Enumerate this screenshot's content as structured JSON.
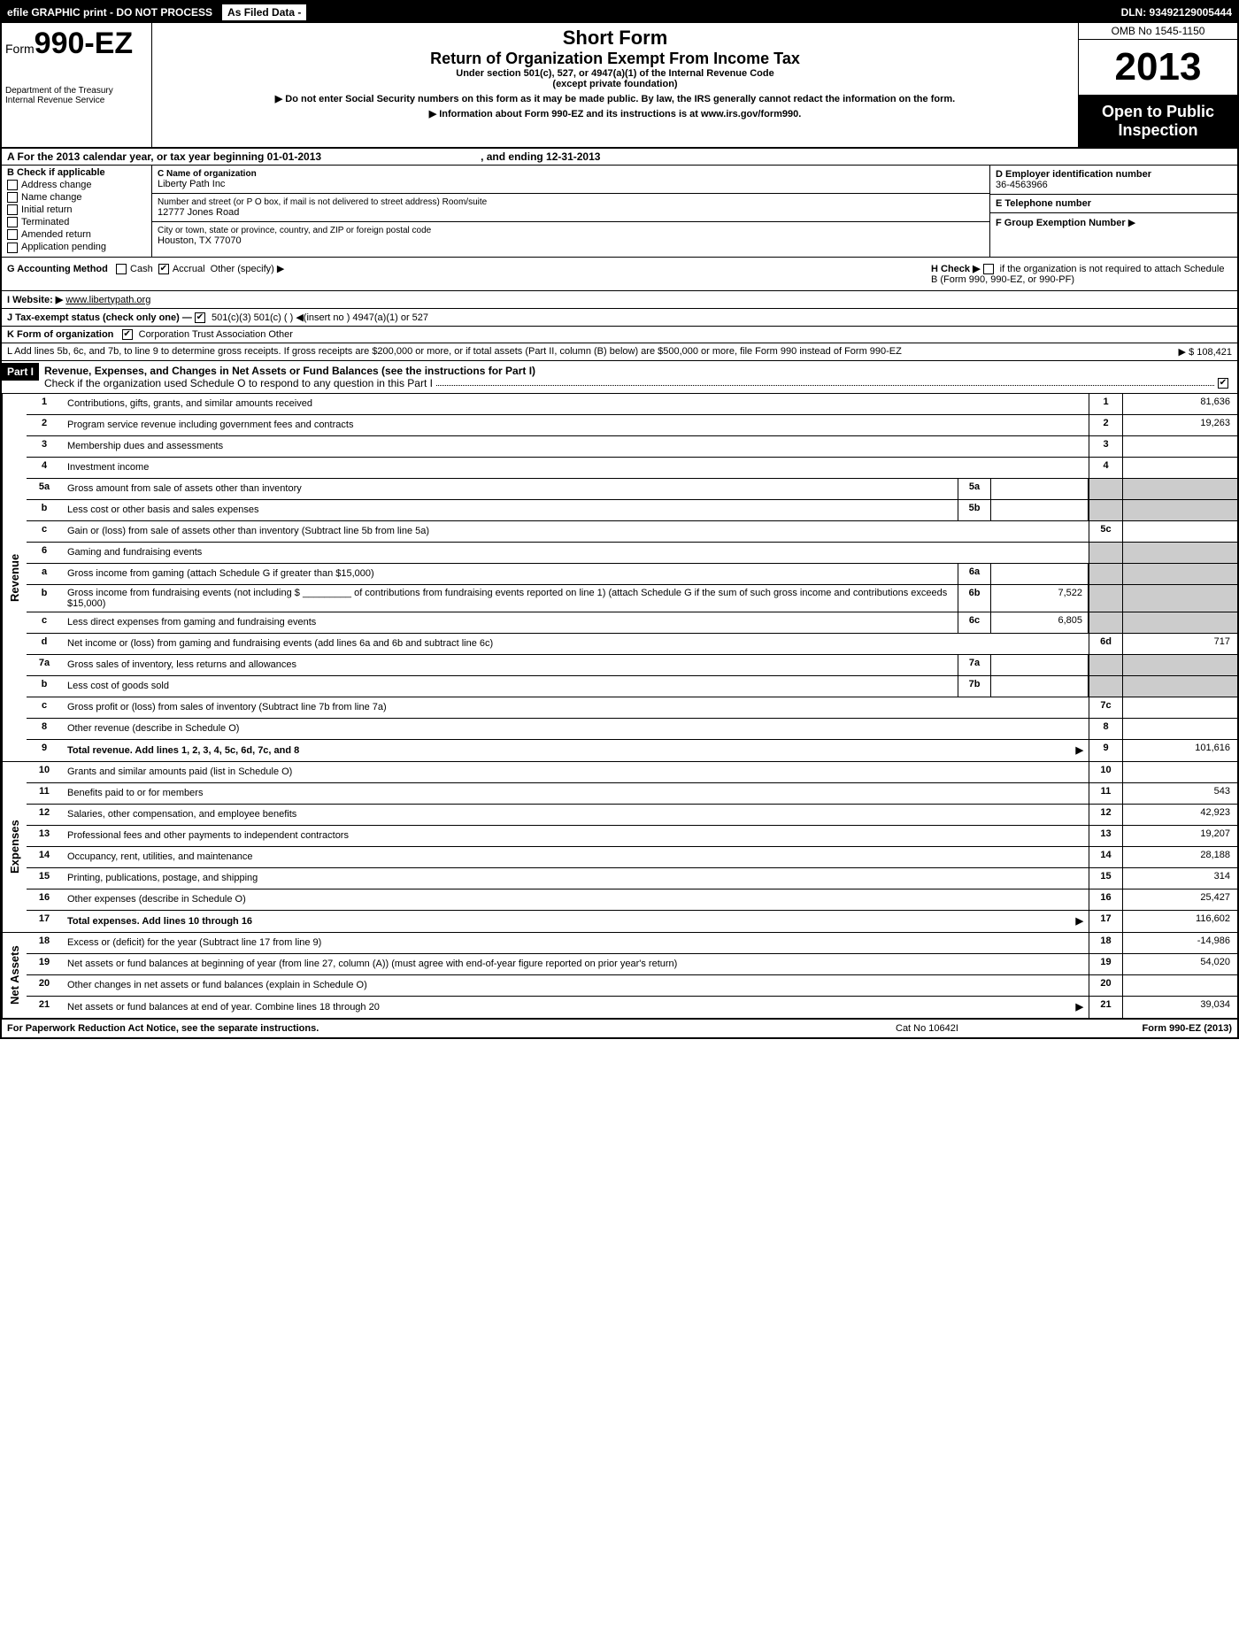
{
  "top_bar": {
    "left": "efile GRAPHIC print - DO NOT PROCESS",
    "mid": "As Filed Data -",
    "right": "DLN: 93492129005444"
  },
  "header": {
    "form_label": "Form",
    "form_number": "990-EZ",
    "dept1": "Department of the Treasury",
    "dept2": "Internal Revenue Service",
    "title1": "Short Form",
    "title2": "Return of Organization Exempt From Income Tax",
    "subtitle1": "Under section 501(c), 527, or 4947(a)(1) of the Internal Revenue Code",
    "subtitle2": "(except private foundation)",
    "note1": "▶ Do not enter Social Security numbers on this form as it may be made public. By law, the IRS generally cannot redact the information on the form.",
    "note2": "▶ Information about Form 990-EZ and its instructions is at www.irs.gov/form990.",
    "omb": "OMB No 1545-1150",
    "year": "2013",
    "open_public1": "Open to Public",
    "open_public2": "Inspection"
  },
  "row_a": {
    "label": "A For the 2013 calendar year, or tax year beginning 01-01-2013",
    "ending": ", and ending 12-31-2013"
  },
  "col_b": {
    "title": "B Check if applicable",
    "items": [
      "Address change",
      "Name change",
      "Initial return",
      "Terminated",
      "Amended return",
      "Application pending"
    ]
  },
  "col_c": {
    "name_label": "C Name of organization",
    "name": "Liberty Path Inc",
    "addr_label": "Number and street (or P O box, if mail is not delivered to street address) Room/suite",
    "addr": "12777 Jones Road",
    "city_label": "City or town, state or province, country, and ZIP or foreign postal code",
    "city": "Houston, TX  77070"
  },
  "col_d": {
    "ein_label": "D Employer identification number",
    "ein": "36-4563966",
    "tel_label": "E Telephone number",
    "tel": "",
    "group_label": "F Group Exemption Number",
    "group_arrow": "▶"
  },
  "row_g": {
    "label": "G Accounting Method",
    "cash": "Cash",
    "accrual": "Accrual",
    "other": "Other (specify) ▶"
  },
  "row_h": {
    "label": "H Check ▶",
    "text": "if the organization is not required to attach Schedule B (Form 990, 990-EZ, or 990-PF)"
  },
  "row_i": {
    "label": "I Website: ▶",
    "value": "www.libertypath.org"
  },
  "row_j": {
    "label": "J Tax-exempt status (check only one) —",
    "opts": "501(c)(3)    501(c) (  ) ◀(insert no )    4947(a)(1) or    527"
  },
  "row_k": {
    "label": "K Form of organization",
    "opts": "Corporation    Trust    Association    Other"
  },
  "row_l": {
    "text": "L Add lines 5b, 6c, and 7b, to line 9 to determine gross receipts. If gross receipts are $200,000 or more, or if total assets (Part II, column (B) below) are $500,000 or more, file Form 990 instead of Form 990-EZ",
    "amount": "▶ $ 108,421"
  },
  "part1": {
    "label": "Part I",
    "title": "Revenue, Expenses, and Changes in Net Assets or Fund Balances (see the instructions for Part I)",
    "check_text": "Check if the organization used Schedule O to respond to any question in this Part I"
  },
  "sections": {
    "revenue": "Revenue",
    "expenses": "Expenses",
    "netassets": "Net Assets"
  },
  "lines": [
    {
      "n": "1",
      "d": "Contributions, gifts, grants, and similar amounts received",
      "rn": "1",
      "rv": "81,636"
    },
    {
      "n": "2",
      "d": "Program service revenue including government fees and contracts",
      "rn": "2",
      "rv": "19,263"
    },
    {
      "n": "3",
      "d": "Membership dues and assessments",
      "rn": "3",
      "rv": ""
    },
    {
      "n": "4",
      "d": "Investment income",
      "rn": "4",
      "rv": ""
    },
    {
      "n": "5a",
      "d": "Gross amount from sale of assets other than inventory",
      "sn": "5a",
      "sv": "",
      "grey": true
    },
    {
      "n": "b",
      "d": "Less cost or other basis and sales expenses",
      "sn": "5b",
      "sv": "",
      "grey": true
    },
    {
      "n": "c",
      "d": "Gain or (loss) from sale of assets other than inventory (Subtract line 5b from line 5a)",
      "rn": "5c",
      "rv": ""
    },
    {
      "n": "6",
      "d": "Gaming and fundraising events",
      "grey": true,
      "noval": true
    },
    {
      "n": "a",
      "d": "Gross income from gaming (attach Schedule G if greater than $15,000)",
      "sn": "6a",
      "sv": "",
      "grey": true
    },
    {
      "n": "b",
      "d": "Gross income from fundraising events (not including $ _________ of contributions from fundraising events reported on line 1) (attach Schedule G if the sum of such gross income and contributions exceeds $15,000)",
      "sn": "6b",
      "sv": "7,522",
      "grey": true
    },
    {
      "n": "c",
      "d": "Less direct expenses from gaming and fundraising events",
      "sn": "6c",
      "sv": "6,805",
      "grey": true
    },
    {
      "n": "d",
      "d": "Net income or (loss) from gaming and fundraising events (add lines 6a and 6b and subtract line 6c)",
      "rn": "6d",
      "rv": "717"
    },
    {
      "n": "7a",
      "d": "Gross sales of inventory, less returns and allowances",
      "sn": "7a",
      "sv": "",
      "grey": true
    },
    {
      "n": "b",
      "d": "Less cost of goods sold",
      "sn": "7b",
      "sv": "",
      "grey": true
    },
    {
      "n": "c",
      "d": "Gross profit or (loss) from sales of inventory (Subtract line 7b from line 7a)",
      "rn": "7c",
      "rv": ""
    },
    {
      "n": "8",
      "d": "Other revenue (describe in Schedule O)",
      "rn": "8",
      "rv": ""
    },
    {
      "n": "9",
      "d": "Total revenue. Add lines 1, 2, 3, 4, 5c, 6d, 7c, and 8",
      "rn": "9",
      "rv": "101,616",
      "bold": true,
      "arrow": true
    }
  ],
  "expense_lines": [
    {
      "n": "10",
      "d": "Grants and similar amounts paid (list in Schedule O)",
      "rn": "10",
      "rv": ""
    },
    {
      "n": "11",
      "d": "Benefits paid to or for members",
      "rn": "11",
      "rv": "543"
    },
    {
      "n": "12",
      "d": "Salaries, other compensation, and employee benefits",
      "rn": "12",
      "rv": "42,923"
    },
    {
      "n": "13",
      "d": "Professional fees and other payments to independent contractors",
      "rn": "13",
      "rv": "19,207"
    },
    {
      "n": "14",
      "d": "Occupancy, rent, utilities, and maintenance",
      "rn": "14",
      "rv": "28,188"
    },
    {
      "n": "15",
      "d": "Printing, publications, postage, and shipping",
      "rn": "15",
      "rv": "314"
    },
    {
      "n": "16",
      "d": "Other expenses (describe in Schedule O)",
      "rn": "16",
      "rv": "25,427"
    },
    {
      "n": "17",
      "d": "Total expenses. Add lines 10 through 16",
      "rn": "17",
      "rv": "116,602",
      "bold": true,
      "arrow": true
    }
  ],
  "netasset_lines": [
    {
      "n": "18",
      "d": "Excess or (deficit) for the year (Subtract line 17 from line 9)",
      "rn": "18",
      "rv": "-14,986"
    },
    {
      "n": "19",
      "d": "Net assets or fund balances at beginning of year (from line 27, column (A)) (must agree with end-of-year figure reported on prior year's return)",
      "rn": "19",
      "rv": "54,020"
    },
    {
      "n": "20",
      "d": "Other changes in net assets or fund balances (explain in Schedule O)",
      "rn": "20",
      "rv": ""
    },
    {
      "n": "21",
      "d": "Net assets or fund balances at end of year. Combine lines 18 through 20",
      "rn": "21",
      "rv": "39,034",
      "arrow": true
    }
  ],
  "footer": {
    "left": "For Paperwork Reduction Act Notice, see the separate instructions.",
    "mid": "Cat No 10642I",
    "right": "Form 990-EZ (2013)"
  }
}
